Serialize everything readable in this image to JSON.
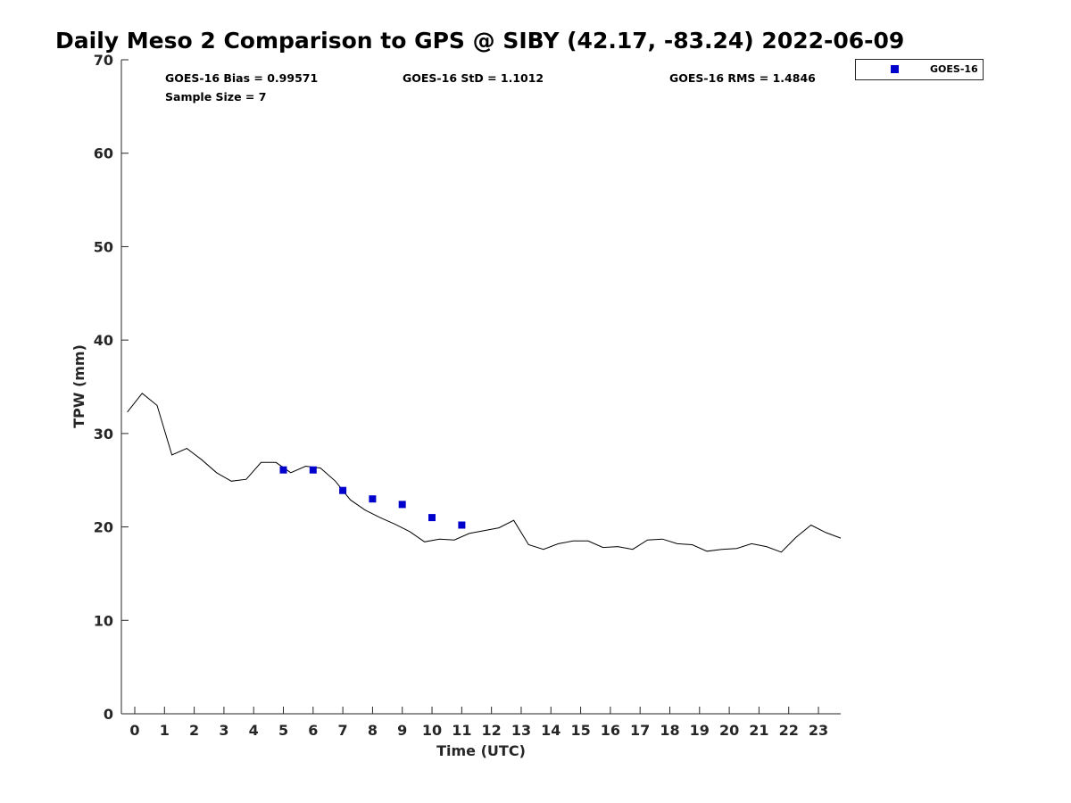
{
  "chart_data": {
    "type": "line",
    "title": "Daily Meso 2 Comparison to GPS @ SIBY (42.17, -83.24) 2022-06-09",
    "xlabel": "Time (UTC)",
    "ylabel": "TPW (mm)",
    "xlim": [
      -0.45,
      23.75
    ],
    "ylim": [
      0,
      70
    ],
    "x_ticks": [
      "0",
      "1",
      "2",
      "3",
      "4",
      "5",
      "6",
      "7",
      "8",
      "9",
      "10",
      "11",
      "12",
      "13",
      "14",
      "15",
      "16",
      "17",
      "18",
      "19",
      "20",
      "21",
      "22",
      "23"
    ],
    "y_ticks": [
      "0",
      "10",
      "20",
      "30",
      "40",
      "50",
      "60",
      "70"
    ],
    "grid": false,
    "legend": {
      "position": "top-right",
      "entries": [
        "GOES-16"
      ]
    },
    "stats": {
      "bias": "GOES-16 Bias = 0.99571",
      "std": "GOES-16 StD = 1.1012",
      "rms": "GOES-16 RMS = 1.4846",
      "sample": "Sample Size = 7"
    },
    "series": [
      {
        "color": "#000000",
        "x": [
          -0.25,
          0.25,
          0.75,
          1.25,
          1.75,
          2.25,
          2.75,
          3.25,
          3.75,
          4.25,
          4.75,
          5.25,
          5.75,
          6.25,
          6.75,
          7.25,
          7.75,
          8.25,
          8.75,
          9.25,
          9.75,
          10.25,
          10.75,
          11.25,
          11.75,
          12.25,
          12.75,
          13.25,
          13.75,
          14.25,
          14.75,
          15.25,
          15.75,
          16.25,
          16.75,
          17.25,
          17.75,
          18.25,
          18.75,
          19.25,
          19.75,
          20.25,
          20.75,
          21.25,
          21.75,
          22.25,
          22.75,
          23.25,
          23.75
        ],
        "values": [
          32.3,
          34.3,
          33.0,
          27.7,
          28.4,
          27.2,
          25.8,
          24.9,
          25.1,
          26.9,
          26.9,
          25.8,
          26.5,
          26.3,
          24.9,
          22.9,
          21.8,
          21.0,
          20.3,
          19.5,
          18.4,
          18.7,
          18.6,
          19.3,
          19.6,
          19.9,
          20.7,
          18.1,
          17.6,
          18.2,
          18.5,
          18.5,
          17.8,
          17.9,
          17.6,
          18.6,
          18.7,
          18.2,
          18.1,
          17.4,
          17.6,
          17.7,
          18.2,
          17.9,
          17.3,
          18.9,
          20.2,
          19.4,
          18.8
        ]
      },
      {
        "name": "GOES-16",
        "type": "scatter",
        "color": "#0000cc",
        "x": [
          5,
          6,
          7,
          8,
          9,
          10,
          11
        ],
        "values": [
          26.1,
          26.1,
          23.9,
          23.0,
          22.4,
          21.0,
          20.2
        ]
      }
    ]
  }
}
